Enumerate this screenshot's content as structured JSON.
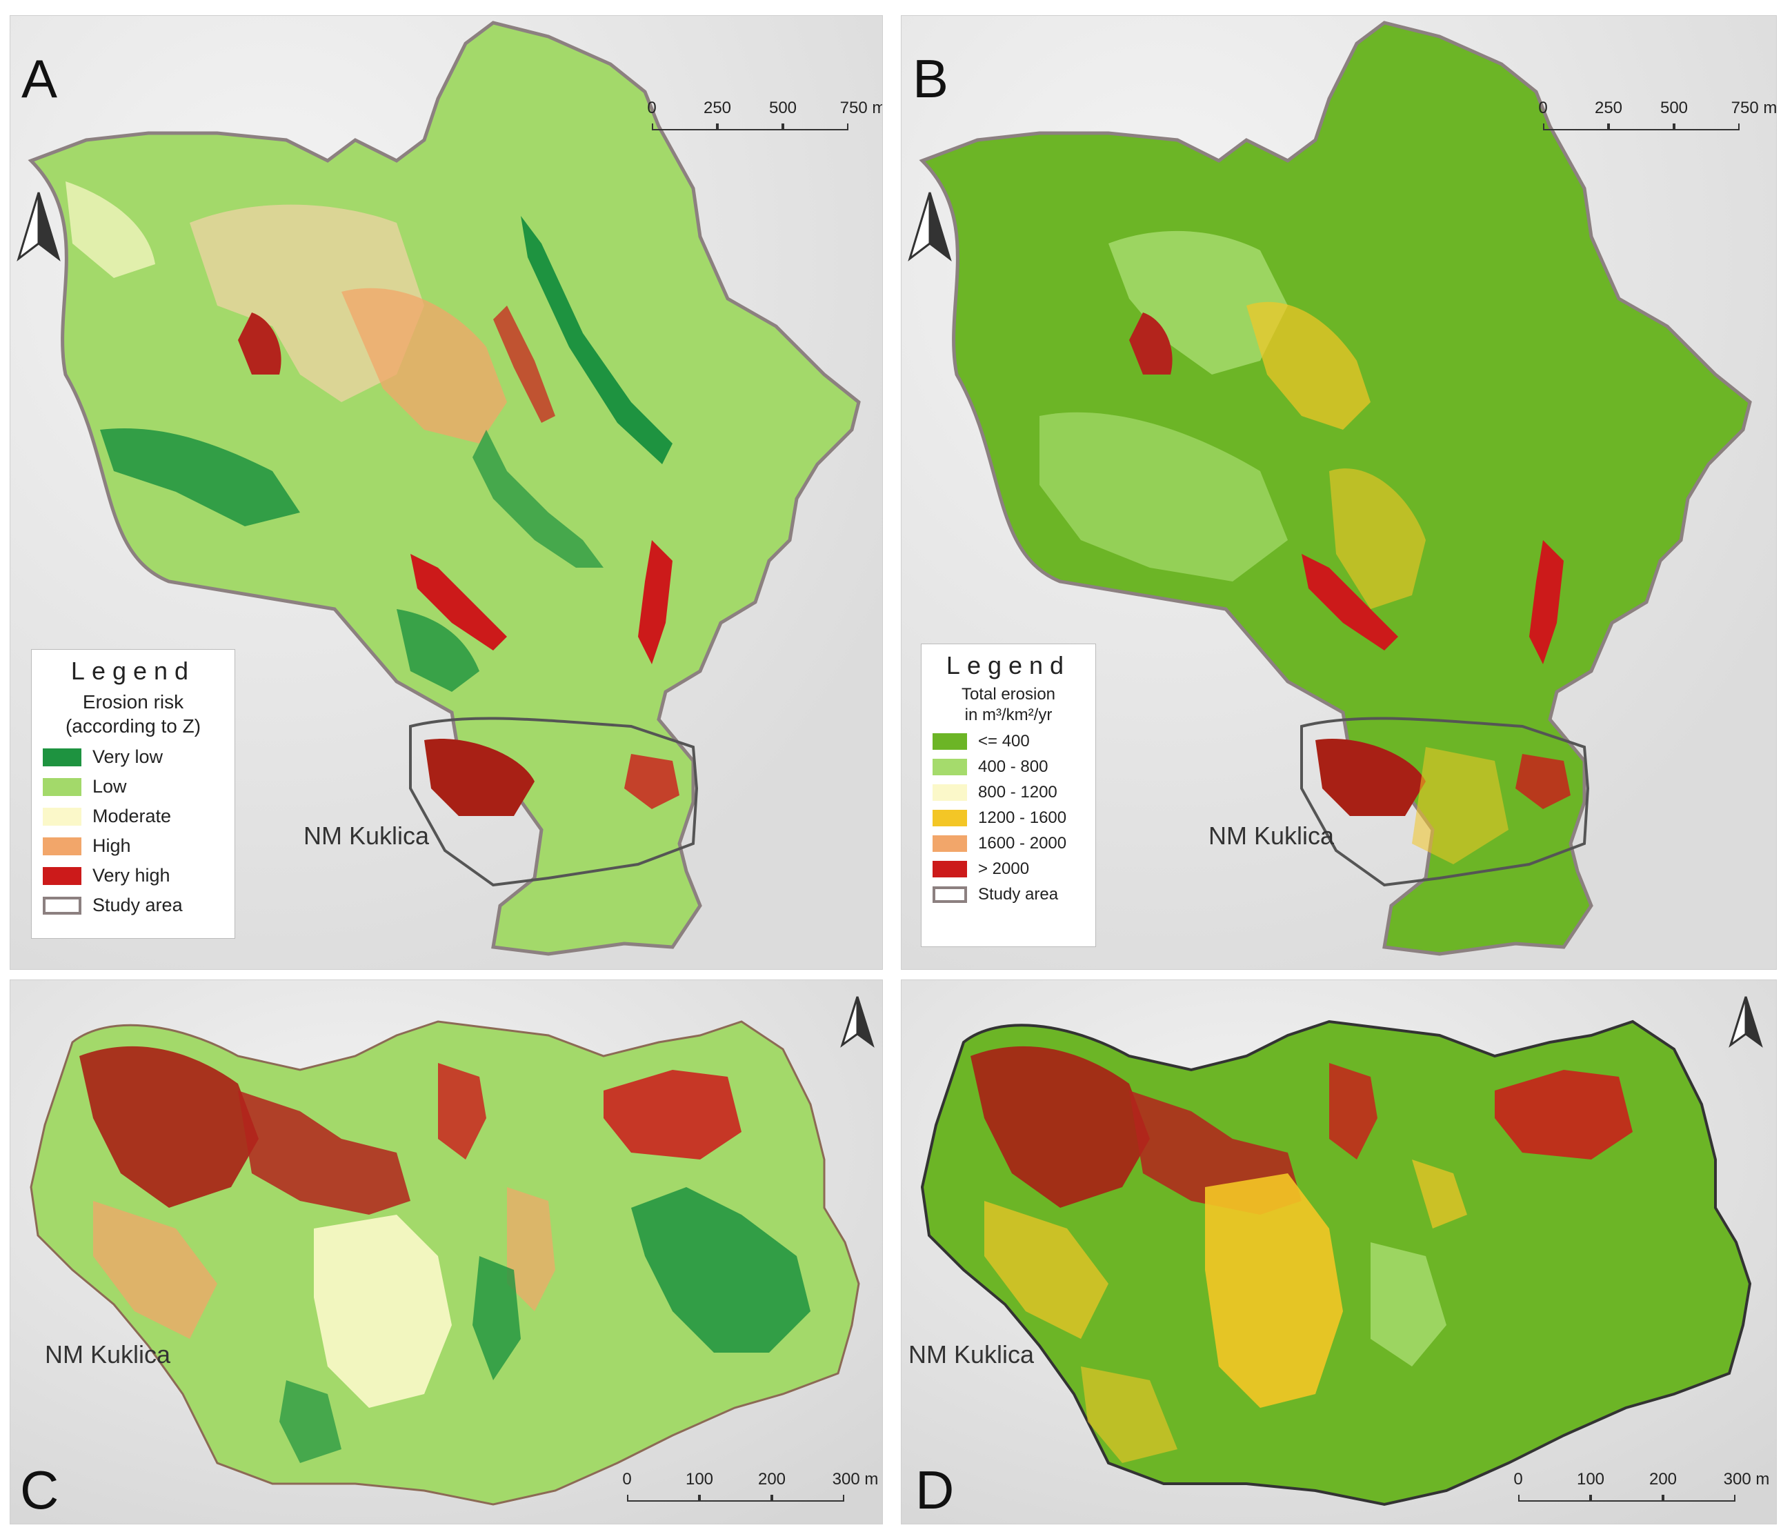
{
  "panels": {
    "a": {
      "label": "A",
      "town": "NM Kuklica",
      "scale": {
        "ticks": [
          "0",
          "250",
          "500",
          "750 m"
        ]
      },
      "legend": {
        "title": "Legend",
        "subtitle1": "Erosion risk",
        "subtitle2": "(according to Z)",
        "items": [
          {
            "label": "Very low",
            "color": "#1e9340"
          },
          {
            "label": "Low",
            "color": "#a3d96a"
          },
          {
            "label": "Moderate",
            "color": "#fbf8c9"
          },
          {
            "label": "High",
            "color": "#f2a66a"
          },
          {
            "label": "Very high",
            "color": "#cc1a1a"
          },
          {
            "label": "Study area",
            "color": "#ffffff",
            "outline": "#8c8080"
          }
        ]
      }
    },
    "b": {
      "label": "B",
      "town": "NM Kuklica",
      "scale": {
        "ticks": [
          "0",
          "250",
          "500",
          "750 m"
        ]
      },
      "legend": {
        "title": "Legend",
        "subtitle1": "Total erosion",
        "subtitle2": "in m³/km²/yr",
        "items": [
          {
            "label": "<= 400",
            "color": "#6cb526"
          },
          {
            "label": "400 - 800",
            "color": "#a5db6c"
          },
          {
            "label": "800 - 1200",
            "color": "#fbf8c9"
          },
          {
            "label": "1200 - 1600",
            "color": "#f3c626"
          },
          {
            "label": "1600 - 2000",
            "color": "#f2a66a"
          },
          {
            "label": "> 2000",
            "color": "#cc1a1a"
          },
          {
            "label": "Study area",
            "color": "#ffffff",
            "outline": "#8c8080"
          }
        ]
      }
    },
    "c": {
      "label": "C",
      "town": "NM Kuklica",
      "scale": {
        "ticks": [
          "0",
          "100",
          "200",
          "300 m"
        ]
      }
    },
    "d": {
      "label": "D",
      "town": "NM Kuklica",
      "scale": {
        "ticks": [
          "0",
          "100",
          "200",
          "300 m"
        ]
      }
    }
  }
}
